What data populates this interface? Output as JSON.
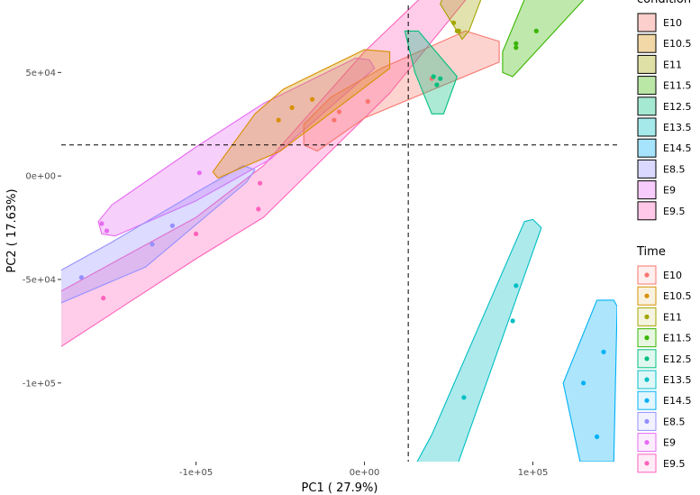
{
  "chart_data": {
    "type": "scatter",
    "xlabel": "PC1 ( 27.9%)",
    "ylabel": "PC2 ( 17.63%)",
    "xlim": [
      -180000,
      150000
    ],
    "ylim": [
      -138000,
      85000
    ],
    "x_ticks": [
      {
        "value": -100000,
        "label": "-1e+05"
      },
      {
        "value": 0,
        "label": "0e+00"
      },
      {
        "value": 100000,
        "label": "1e+05"
      }
    ],
    "y_ticks": [
      {
        "value": 50000,
        "label": "5e+04"
      },
      {
        "value": 0,
        "label": "0e+00"
      },
      {
        "value": -50000,
        "label": "-5e+04"
      },
      {
        "value": -100000,
        "label": "-1e+05"
      }
    ],
    "reference_lines": {
      "vertical_x": 26000,
      "horizontal_y": 15000,
      "style": "dashed"
    },
    "grid": false,
    "legends": [
      {
        "title": "condition",
        "kind": "fill",
        "entries": [
          "E10",
          "E10.5",
          "E11",
          "E11.5",
          "E12.5",
          "E13.5",
          "E14.5",
          "E8.5",
          "E9",
          "E9.5"
        ]
      },
      {
        "title": "Time",
        "kind": "point",
        "entries": [
          "E10",
          "E10.5",
          "E11",
          "E11.5",
          "E12.5",
          "E13.5",
          "E14.5",
          "E8.5",
          "E9",
          "E9.5"
        ]
      }
    ],
    "colors": {
      "E10": "#F8766D",
      "E10.5": "#D89000",
      "E11": "#A3A500",
      "E11.5": "#39B600",
      "E12.5": "#00BF7D",
      "E13.5": "#00BFC4",
      "E14.5": "#00B0F6",
      "E8.5": "#9590FF",
      "E9": "#E76BF3",
      "E9.5": "#FF62BC"
    },
    "series": [
      {
        "name": "E9.5",
        "points": [
          [
            -100000,
            -28000
          ],
          [
            -63000,
            -16000
          ],
          [
            -62000,
            -3500
          ],
          [
            -155000,
            -59000
          ]
        ],
        "hull": [
          [
            -185000,
            -85000
          ],
          [
            -100000,
            -40000
          ],
          [
            -60000,
            -20000
          ],
          [
            15000,
            40000
          ],
          [
            100000,
            125000
          ],
          [
            90000,
            130000
          ],
          [
            0,
            60000
          ],
          [
            -60000,
            5000
          ],
          [
            -100000,
            -20000
          ],
          [
            -190000,
            -60000
          ]
        ]
      },
      {
        "name": "E9",
        "points": [
          [
            -156000,
            -23000
          ],
          [
            -153000,
            -26500
          ],
          [
            -98000,
            1500
          ]
        ],
        "hull": [
          [
            -158000,
            -22000
          ],
          [
            -156000,
            -28000
          ],
          [
            -148000,
            -29000
          ],
          [
            -100000,
            -12000
          ],
          [
            -56000,
            8000
          ],
          [
            6000,
            52000
          ],
          [
            3000,
            56000
          ],
          [
            -5000,
            57000
          ],
          [
            -60000,
            35000
          ],
          [
            -100000,
            14000
          ],
          [
            -150000,
            -14000
          ]
        ]
      },
      {
        "name": "E8.5",
        "points": [
          [
            -168000,
            -49000
          ],
          [
            -126000,
            -33000
          ],
          [
            -114000,
            -24000
          ]
        ],
        "hull": [
          [
            -190000,
            -50000
          ],
          [
            -185000,
            -63000
          ],
          [
            -130000,
            -44000
          ],
          [
            -70000,
            -3000
          ],
          [
            -65000,
            3000
          ],
          [
            -72000,
            5000
          ],
          [
            -100000,
            -8000
          ],
          [
            -150000,
            -32000
          ]
        ]
      },
      {
        "name": "E10",
        "points": [
          [
            -18000,
            27000
          ],
          [
            -15000,
            31000
          ],
          [
            2000,
            36000
          ],
          [
            40000,
            47000
          ]
        ],
        "hull": [
          [
            -36000,
            15000
          ],
          [
            -28000,
            12000
          ],
          [
            0,
            28000
          ],
          [
            80000,
            55000
          ],
          [
            80000,
            65000
          ],
          [
            60000,
            70000
          ],
          [
            10000,
            52000
          ],
          [
            -20000,
            38000
          ],
          [
            -36000,
            25000
          ]
        ]
      },
      {
        "name": "E10.5",
        "points": [
          [
            -51000,
            27000
          ],
          [
            -43000,
            33000
          ],
          [
            -31000,
            37000
          ]
        ],
        "hull": [
          [
            -90000,
            2000
          ],
          [
            -87000,
            -1000
          ],
          [
            -50000,
            12000
          ],
          [
            15000,
            52000
          ],
          [
            15000,
            60000
          ],
          [
            0,
            61000
          ],
          [
            -48000,
            42000
          ],
          [
            -65000,
            30000
          ]
        ]
      },
      {
        "name": "E11",
        "points": [
          [
            53000,
            74000
          ],
          [
            55000,
            70000
          ],
          [
            56000,
            70000
          ]
        ],
        "hull": [
          [
            45000,
            83000
          ],
          [
            58000,
            66000
          ],
          [
            62000,
            70000
          ],
          [
            70000,
            87000
          ],
          [
            48000,
            90000
          ]
        ]
      },
      {
        "name": "E11.5",
        "points": [
          [
            90000,
            62000
          ],
          [
            90000,
            64000
          ],
          [
            102000,
            70000
          ]
        ],
        "hull": [
          [
            82000,
            50000
          ],
          [
            88000,
            48000
          ],
          [
            130000,
            85000
          ],
          [
            125000,
            95000
          ],
          [
            100000,
            95000
          ],
          [
            82000,
            60000
          ]
        ]
      },
      {
        "name": "E12.5",
        "points": [
          [
            41000,
            48000
          ],
          [
            43000,
            44000
          ],
          [
            45000,
            47000
          ]
        ],
        "hull": [
          [
            24000,
            70000
          ],
          [
            32000,
            70000
          ],
          [
            55000,
            48000
          ],
          [
            47000,
            30000
          ],
          [
            40000,
            30000
          ],
          [
            30000,
            50000
          ]
        ]
      },
      {
        "name": "E13.5",
        "points": [
          [
            59000,
            -107000
          ],
          [
            88000,
            -70000
          ],
          [
            90000,
            -53000
          ]
        ],
        "hull": [
          [
            30000,
            -140000
          ],
          [
            55000,
            -140000
          ],
          [
            105000,
            -25000
          ],
          [
            100000,
            -21000
          ],
          [
            95000,
            -22000
          ],
          [
            40000,
            -125000
          ]
        ]
      },
      {
        "name": "E14.5",
        "points": [
          [
            130000,
            -100000
          ],
          [
            138000,
            -126000
          ],
          [
            142000,
            -85000
          ]
        ],
        "hull": [
          [
            118000,
            -100000
          ],
          [
            138000,
            -60000
          ],
          [
            148000,
            -60000
          ],
          [
            150000,
            -63000
          ],
          [
            148000,
            -138000
          ],
          [
            128000,
            -138000
          ]
        ]
      }
    ]
  }
}
